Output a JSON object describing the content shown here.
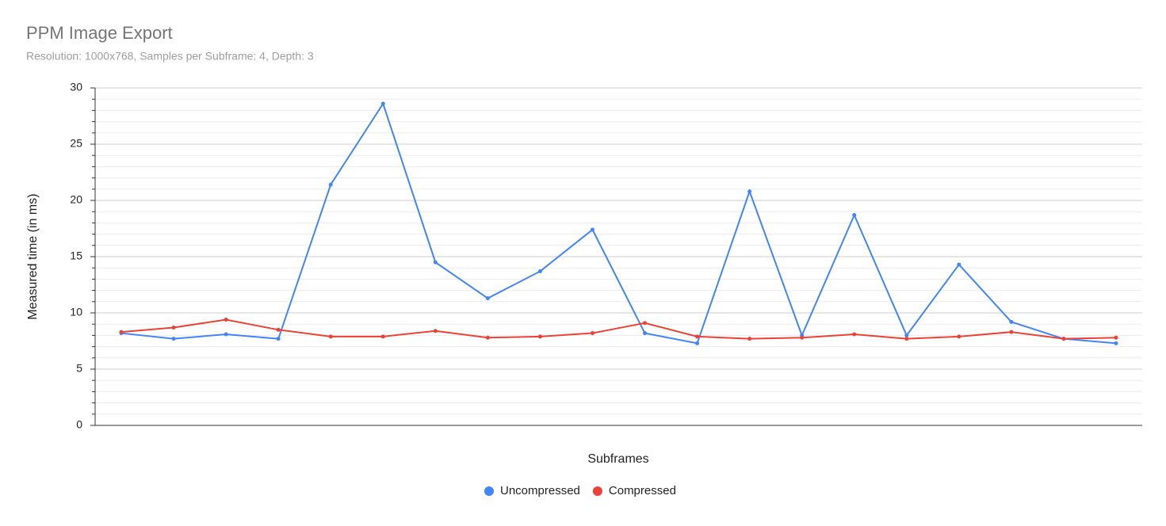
{
  "chart_data": {
    "type": "line",
    "title": "PPM Image Export",
    "subtitle": "Resolution: 1000x768, Samples per Subframe: 4, Depth: 3",
    "x_label": "Subframes",
    "y_label": "Measured time (in ms)",
    "categories": [
      null,
      null,
      null,
      null,
      null,
      null,
      null,
      null,
      null,
      null,
      null,
      null,
      null,
      null,
      null,
      null,
      null,
      null,
      null,
      null
    ],
    "series": [
      {
        "name": "Uncompressed",
        "color": "#4285f4",
        "values": [
          8.2,
          7.7,
          8.1,
          7.7,
          21.4,
          28.6,
          14.5,
          11.3,
          13.7,
          17.4,
          8.2,
          7.3,
          20.8,
          8.0,
          18.7,
          8.0,
          14.3,
          9.2,
          7.7,
          7.3
        ]
      },
      {
        "name": "Compressed",
        "color": "#ea4335",
        "values": [
          8.3,
          8.7,
          9.4,
          8.5,
          7.9,
          7.9,
          8.4,
          7.8,
          7.9,
          8.2,
          9.1,
          7.9,
          7.7,
          7.8,
          8.1,
          7.7,
          7.9,
          8.3,
          7.7,
          7.8
        ]
      }
    ],
    "ylim": [
      0,
      30
    ],
    "yticks": [
      0,
      5,
      10,
      15,
      20,
      25,
      30
    ],
    "minor_yticks": [
      1,
      2,
      3,
      4,
      6,
      7,
      8,
      9,
      11,
      12,
      13,
      14,
      16,
      17,
      18,
      19,
      21,
      22,
      23,
      24,
      26,
      27,
      28,
      29
    ],
    "grid": true,
    "legend": "bottom"
  }
}
